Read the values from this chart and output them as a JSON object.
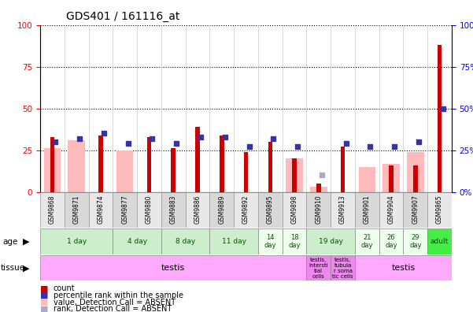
{
  "title": "GDS401 / 161116_at",
  "samples": [
    "GSM9868",
    "GSM9871",
    "GSM9874",
    "GSM9877",
    "GSM9880",
    "GSM9883",
    "GSM9886",
    "GSM9889",
    "GSM9892",
    "GSM9895",
    "GSM9898",
    "GSM9910",
    "GSM9913",
    "GSM9901",
    "GSM9904",
    "GSM9907",
    "GSM9865"
  ],
  "red_bars": [
    33,
    0,
    34,
    0,
    33,
    26,
    39,
    34,
    24,
    30,
    20,
    5,
    27,
    0,
    16,
    16,
    88
  ],
  "pink_bars": [
    26,
    31,
    0,
    25,
    0,
    0,
    0,
    0,
    0,
    0,
    20,
    3,
    0,
    15,
    17,
    24,
    0
  ],
  "blue_squares": [
    30,
    32,
    35,
    29,
    32,
    29,
    33,
    33,
    27,
    32,
    27,
    0,
    29,
    27,
    27,
    30,
    50
  ],
  "lavender_squares": [
    0,
    0,
    0,
    0,
    0,
    0,
    0,
    0,
    0,
    0,
    0,
    10,
    0,
    0,
    0,
    0,
    0
  ],
  "age_groups": [
    {
      "label": "1 day",
      "start": 0,
      "end": 2,
      "color": "#cceecc"
    },
    {
      "label": "4 day",
      "start": 3,
      "end": 4,
      "color": "#cceecc"
    },
    {
      "label": "8 day",
      "start": 5,
      "end": 6,
      "color": "#cceecc"
    },
    {
      "label": "11 day",
      "start": 7,
      "end": 8,
      "color": "#cceecc"
    },
    {
      "label": "14\nday",
      "start": 9,
      "end": 9,
      "color": "#eeffee"
    },
    {
      "label": "18\nday",
      "start": 10,
      "end": 10,
      "color": "#eeffee"
    },
    {
      "label": "19 day",
      "start": 11,
      "end": 12,
      "color": "#cceecc"
    },
    {
      "label": "21\nday",
      "start": 13,
      "end": 13,
      "color": "#eeffee"
    },
    {
      "label": "26\nday",
      "start": 14,
      "end": 14,
      "color": "#eeffee"
    },
    {
      "label": "29\nday",
      "start": 15,
      "end": 15,
      "color": "#eeffee"
    },
    {
      "label": "adult",
      "start": 16,
      "end": 16,
      "color": "#44ee44"
    }
  ],
  "tissue_groups": [
    {
      "label": "testis",
      "start": 0,
      "end": 10,
      "color": "#ffaaff"
    },
    {
      "label": "testis,\nintersti\ntial\ncells",
      "start": 11,
      "end": 11,
      "color": "#ee88ee"
    },
    {
      "label": "testis,\ntubula\nr soma\ntic cells",
      "start": 12,
      "end": 12,
      "color": "#ee88ee"
    },
    {
      "label": "testis",
      "start": 13,
      "end": 16,
      "color": "#ffaaff"
    }
  ],
  "ylim": [
    0,
    100
  ],
  "background_color": "#ffffff",
  "red_color": "#cc0000",
  "pink_color": "#ffbbbb",
  "blue_color": "#3333aa",
  "lavender_color": "#aaaacc",
  "cell_bg_even": "#e8e8e8",
  "cell_bg_odd": "#d8d8d8"
}
